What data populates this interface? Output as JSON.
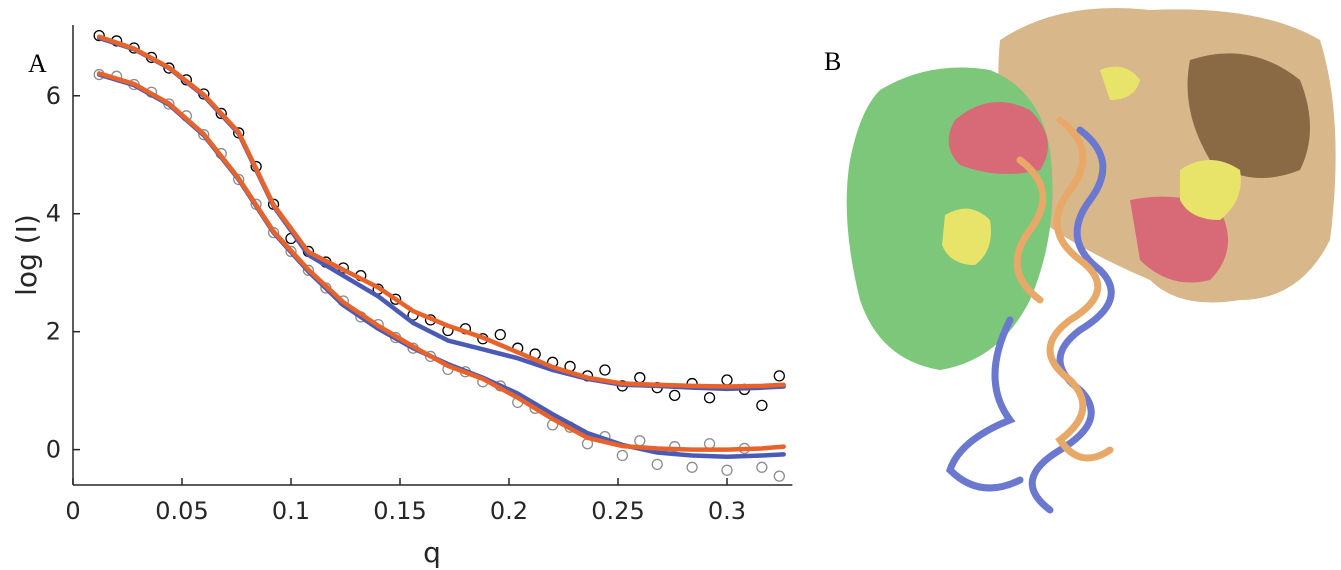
{
  "panel_labels": [
    "A",
    "B"
  ],
  "chart_data": {
    "type": "scatter",
    "x_label": "q",
    "y_label": "log (I)",
    "xlim": [
      0,
      0.33
    ],
    "ylim": [
      -0.6,
      7.2
    ],
    "xticks": [
      0,
      0.05,
      0.1,
      0.15,
      0.2,
      0.25,
      0.3
    ],
    "yticks": [
      0,
      2,
      4,
      6
    ],
    "series": [
      {
        "kind": "scatter",
        "color": "#000000",
        "x": [
          0.012,
          0.02,
          0.028,
          0.036,
          0.044,
          0.052,
          0.06,
          0.068,
          0.076,
          0.084,
          0.092,
          0.1,
          0.108,
          0.116,
          0.124,
          0.132,
          0.14,
          0.148,
          0.156,
          0.164,
          0.172,
          0.18,
          0.188,
          0.196,
          0.204,
          0.212,
          0.22,
          0.228,
          0.236,
          0.244,
          0.252,
          0.26,
          0.268,
          0.276,
          0.284,
          0.292,
          0.3,
          0.308,
          0.316,
          0.324
        ],
        "values": [
          7.02,
          6.93,
          6.81,
          6.65,
          6.47,
          6.27,
          6.03,
          5.7,
          5.37,
          4.8,
          4.16,
          3.58,
          3.36,
          3.18,
          3.08,
          2.95,
          2.72,
          2.55,
          2.28,
          2.2,
          2.02,
          2.05,
          1.88,
          1.95,
          1.72,
          1.62,
          1.48,
          1.41,
          1.25,
          1.35,
          1.08,
          1.22,
          1.05,
          0.92,
          1.12,
          0.88,
          1.18,
          1.02,
          0.75,
          1.25
        ]
      },
      {
        "kind": "scatter",
        "color": "#8c8c8c",
        "x": [
          0.012,
          0.02,
          0.028,
          0.036,
          0.044,
          0.052,
          0.06,
          0.068,
          0.076,
          0.084,
          0.092,
          0.1,
          0.108,
          0.116,
          0.124,
          0.132,
          0.14,
          0.148,
          0.156,
          0.164,
          0.172,
          0.18,
          0.188,
          0.196,
          0.204,
          0.212,
          0.22,
          0.228,
          0.236,
          0.244,
          0.252,
          0.26,
          0.268,
          0.276,
          0.284,
          0.292,
          0.3,
          0.308,
          0.316,
          0.324
        ],
        "values": [
          6.36,
          6.33,
          6.19,
          6.06,
          5.86,
          5.66,
          5.34,
          5.02,
          4.58,
          4.16,
          3.68,
          3.36,
          3.04,
          2.74,
          2.52,
          2.25,
          2.12,
          1.9,
          1.72,
          1.58,
          1.36,
          1.32,
          1.15,
          1.08,
          0.8,
          0.7,
          0.42,
          0.38,
          0.1,
          0.22,
          -0.1,
          0.15,
          -0.25,
          0.05,
          -0.3,
          0.1,
          -0.35,
          0.02,
          -0.3,
          -0.45
        ]
      },
      {
        "kind": "line",
        "color": "#4a5bb5",
        "x": [
          0.012,
          0.028,
          0.044,
          0.06,
          0.076,
          0.092,
          0.108,
          0.124,
          0.14,
          0.156,
          0.172,
          0.188,
          0.204,
          0.22,
          0.236,
          0.252,
          0.268,
          0.284,
          0.3,
          0.316,
          0.326
        ],
        "values": [
          6.98,
          6.79,
          6.47,
          6.0,
          5.36,
          4.13,
          3.3,
          2.95,
          2.6,
          2.15,
          1.85,
          1.7,
          1.55,
          1.35,
          1.2,
          1.1,
          1.08,
          1.05,
          1.03,
          1.05,
          1.07
        ]
      },
      {
        "kind": "line",
        "color": "#4a5bb5",
        "x": [
          0.012,
          0.028,
          0.044,
          0.06,
          0.076,
          0.092,
          0.108,
          0.124,
          0.14,
          0.156,
          0.172,
          0.188,
          0.204,
          0.22,
          0.236,
          0.252,
          0.268,
          0.284,
          0.3,
          0.316,
          0.326
        ],
        "values": [
          6.36,
          6.18,
          5.85,
          5.33,
          4.58,
          3.68,
          3.02,
          2.45,
          2.05,
          1.72,
          1.45,
          1.22,
          0.95,
          0.6,
          0.28,
          0.08,
          -0.05,
          -0.1,
          -0.12,
          -0.1,
          -0.08
        ]
      },
      {
        "kind": "line",
        "color": "#e8622a",
        "x": [
          0.012,
          0.028,
          0.044,
          0.06,
          0.076,
          0.092,
          0.108,
          0.124,
          0.14,
          0.156,
          0.172,
          0.188,
          0.204,
          0.22,
          0.236,
          0.252,
          0.268,
          0.284,
          0.3,
          0.316,
          0.326
        ],
        "values": [
          7.0,
          6.8,
          6.48,
          6.02,
          5.38,
          4.15,
          3.35,
          3.05,
          2.75,
          2.35,
          2.1,
          1.9,
          1.65,
          1.4,
          1.22,
          1.12,
          1.1,
          1.08,
          1.07,
          1.08,
          1.1
        ]
      },
      {
        "kind": "line",
        "color": "#e8622a",
        "x": [
          0.012,
          0.028,
          0.044,
          0.06,
          0.076,
          0.092,
          0.108,
          0.124,
          0.14,
          0.156,
          0.172,
          0.188,
          0.204,
          0.22,
          0.236,
          0.252,
          0.268,
          0.284,
          0.3,
          0.316,
          0.326
        ],
        "values": [
          6.38,
          6.2,
          5.87,
          5.35,
          4.6,
          3.7,
          3.05,
          2.5,
          2.1,
          1.75,
          1.42,
          1.2,
          0.88,
          0.52,
          0.2,
          0.06,
          0.02,
          0.0,
          0.0,
          0.02,
          0.05
        ]
      }
    ]
  }
}
